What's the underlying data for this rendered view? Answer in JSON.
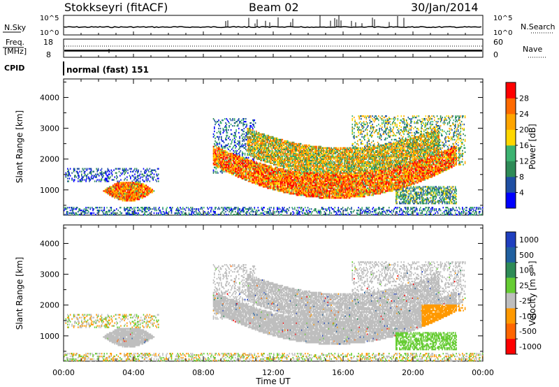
{
  "header": {
    "station": "Stokkseyri (fitACF)",
    "beam": "Beam 02",
    "date": "30/Jan/2014"
  },
  "top_panels": {
    "nsky_label": "N.Sky",
    "nsearch_label": "N.Search",
    "noise_ticks_left": [
      "10^5",
      "10^0"
    ],
    "noise_ticks_right": [
      "10^5",
      "10^0"
    ],
    "freq_label": "Freq.",
    "freq_unit": "[MHz]",
    "freq_ticks": [
      "18",
      "8"
    ],
    "nave_label": "Nave",
    "nave_ticks": [
      "60",
      "0"
    ],
    "cpid_label": "CPID",
    "cpid_text": "normal (fast) 151"
  },
  "colors": {
    "power": [
      "#0000ff",
      "#1f4fa3",
      "#2e8b57",
      "#3cb371",
      "#ffd700",
      "#ffa500",
      "#ff6a00",
      "#ff0000"
    ],
    "velocity": [
      "#1f3fbf",
      "#2060a0",
      "#2e8b57",
      "#66cc33",
      "#bebebe",
      "#ff9900",
      "#ff6600",
      "#ff0000"
    ],
    "ground": "#a9a9a9"
  },
  "chart_data": [
    {
      "type": "heatmap",
      "ylabel": "Slant Range [km]",
      "xlabel": "Time UT",
      "xlim": [
        0,
        24
      ],
      "ylim": [
        180,
        4600
      ],
      "x_ticks": [
        "00:00",
        "04:00",
        "08:00",
        "12:00",
        "16:00",
        "20:00",
        "00:00"
      ],
      "y_ticks": [
        1000,
        2000,
        3000,
        4000
      ],
      "colorbar": {
        "label": "Power [dB]",
        "ticks": [
          "4",
          "8",
          "12",
          "16",
          "20",
          "24",
          "28"
        ],
        "range": [
          0,
          32
        ]
      }
    },
    {
      "type": "heatmap",
      "ylabel": "Slant Range [km]",
      "xlabel": "Time UT",
      "xlim": [
        0,
        24
      ],
      "ylim": [
        180,
        4600
      ],
      "x_ticks": [
        "00:00",
        "04:00",
        "08:00",
        "12:00",
        "16:00",
        "20:00",
        "00:00"
      ],
      "y_ticks": [
        1000,
        2000,
        3000,
        4000
      ],
      "colorbar": {
        "label": "Velocity [m s⁻¹]",
        "ticks": [
          "1000",
          "500",
          "100",
          "25",
          "-25",
          "-100",
          "-500",
          "-1000"
        ]
      }
    }
  ]
}
